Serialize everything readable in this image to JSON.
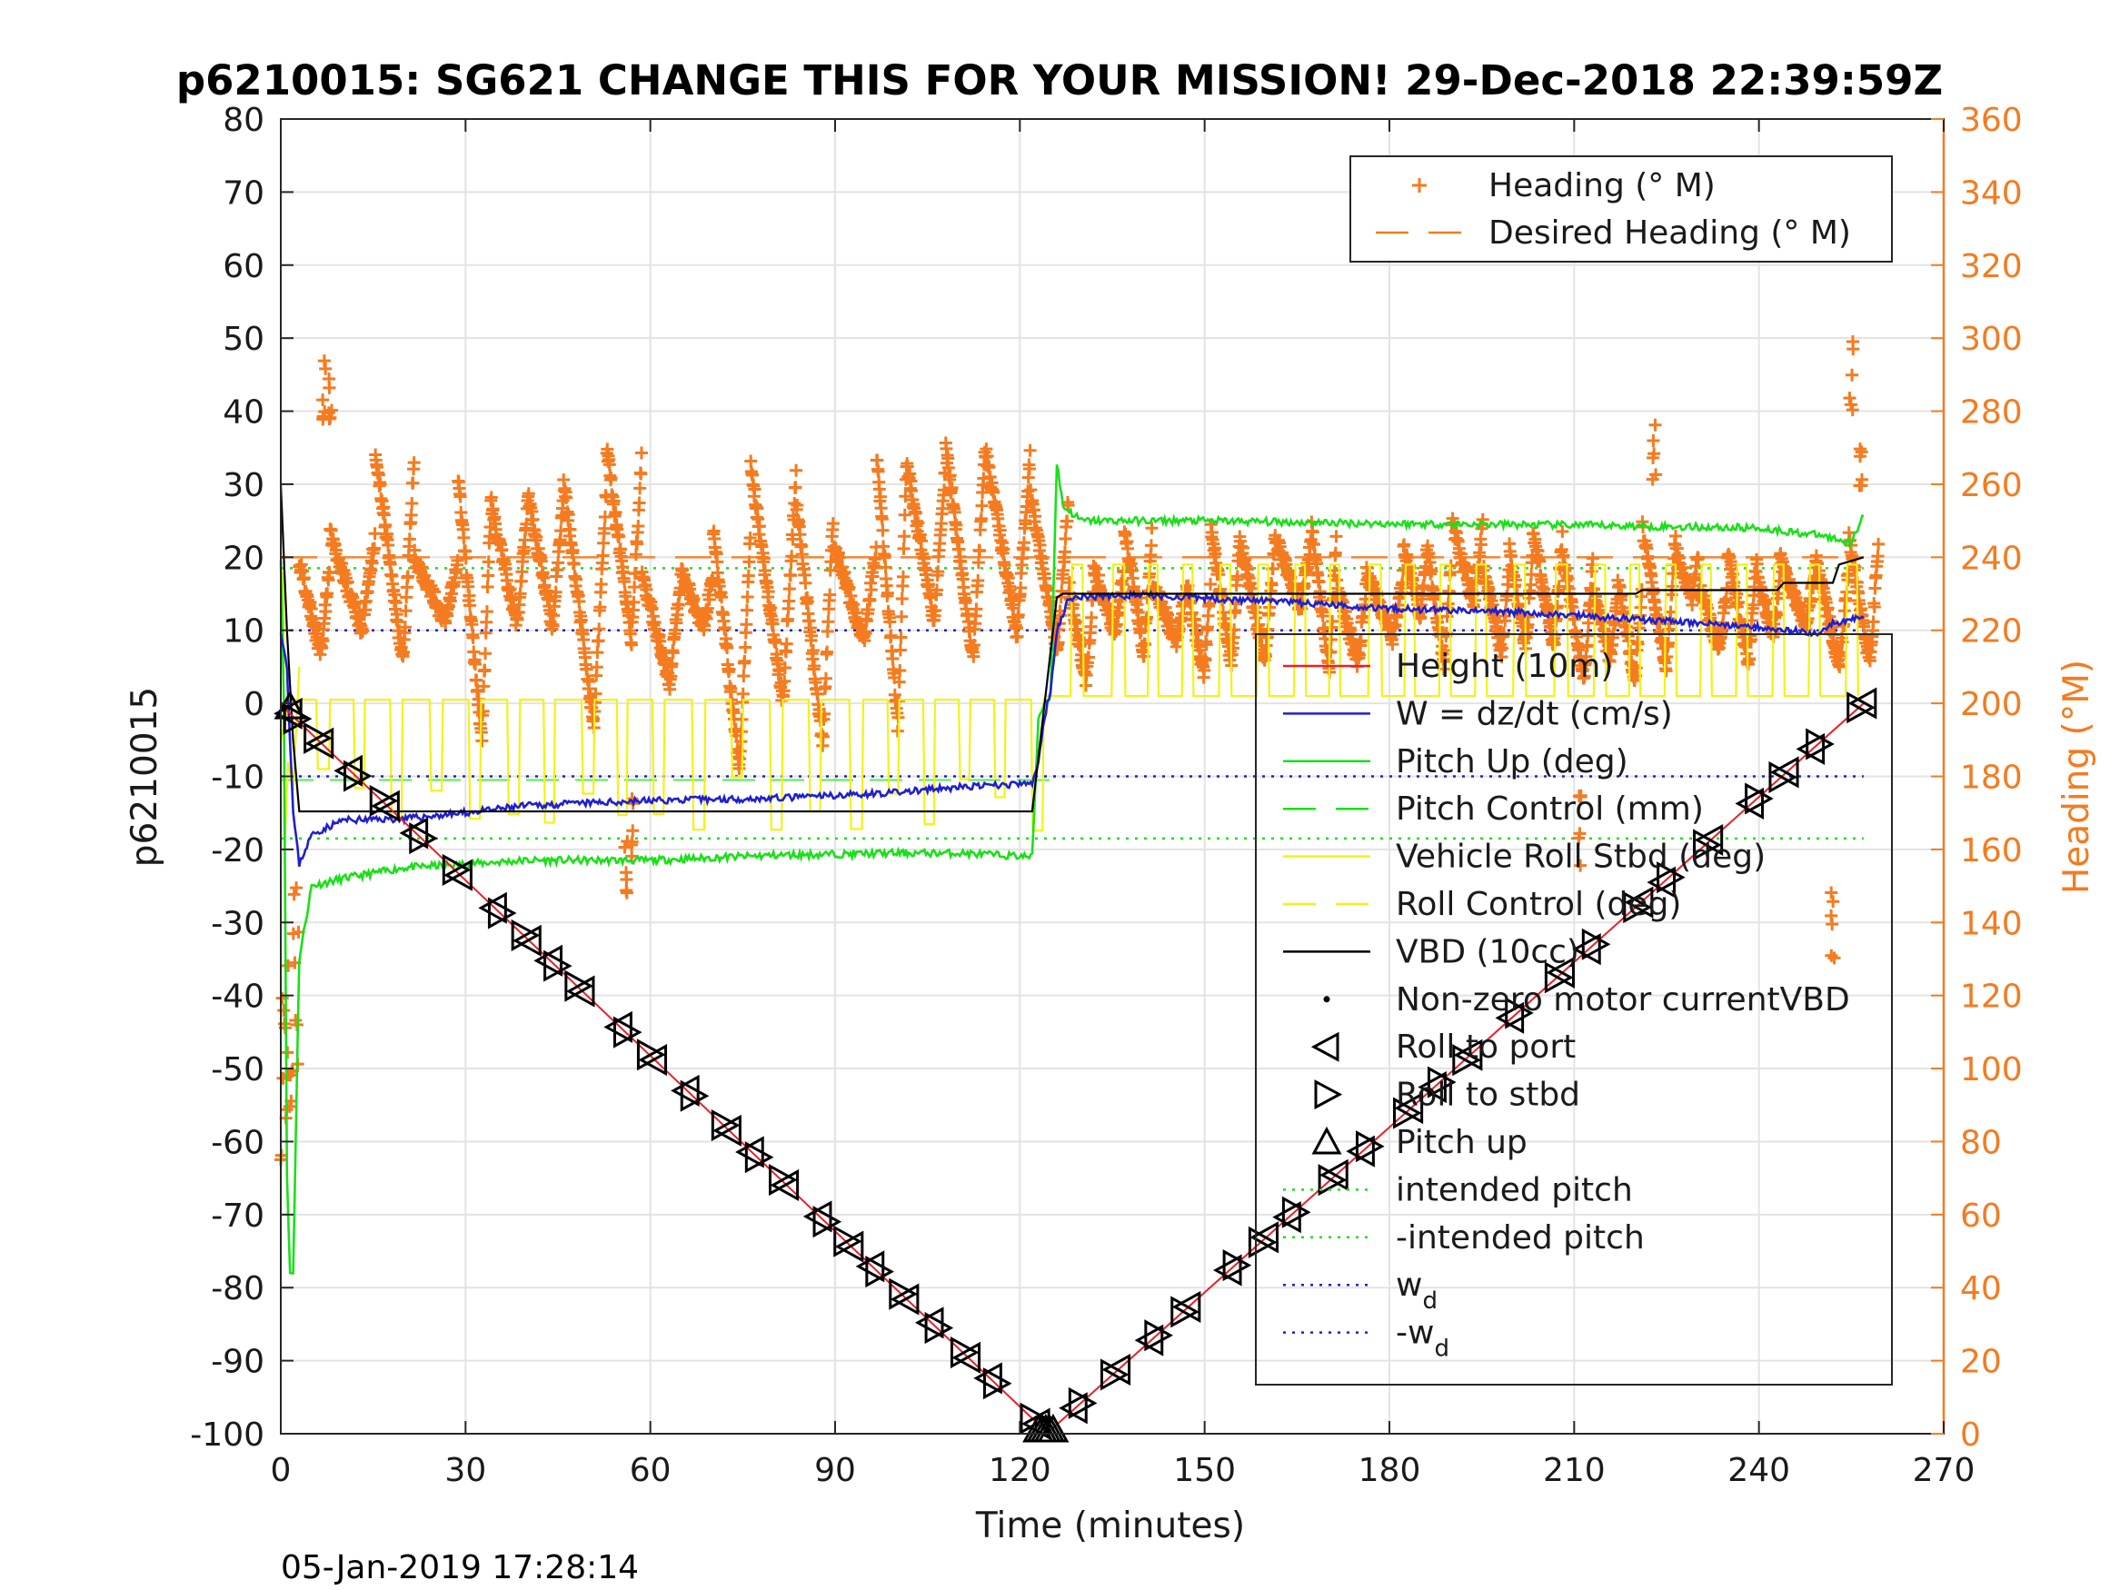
{
  "title": "p6210015: SG621 CHANGE THIS FOR YOUR MISSION! 29-Dec-2018 22:39:59Z",
  "timestamp": "05-Jan-2019 17:28:14",
  "colors": {
    "heading": "#f47b20",
    "height": "#e8202a",
    "w": "#1f1fd0",
    "pitch": "#19e019",
    "roll": "#f2f214",
    "vbd": "#000000",
    "grid": "#e3e3e3"
  },
  "chart_data": {
    "type": "line",
    "xlabel": "Time (minutes)",
    "ylabel": "p6210015",
    "ylabel_right": "Heading (°M)",
    "xlim": [
      0,
      270
    ],
    "ylim": [
      -100,
      80
    ],
    "ylim_right": [
      0,
      360
    ],
    "grid": true,
    "x_ticks": [
      "0",
      "30",
      "60",
      "90",
      "120",
      "150",
      "180",
      "210",
      "240",
      "270"
    ],
    "y_ticks": [
      "80",
      "70",
      "60",
      "50",
      "40",
      "30",
      "20",
      "10",
      "0",
      "-10",
      "-20",
      "-30",
      "-40",
      "-50",
      "-60",
      "-70",
      "-80",
      "-90",
      "-100"
    ],
    "y_ticks_right": [
      "360",
      "340",
      "320",
      "300",
      "280",
      "260",
      "240",
      "220",
      "200",
      "180",
      "160",
      "140",
      "120",
      "100",
      "80",
      "60",
      "40",
      "20",
      "0"
    ],
    "legend_heading": {
      "placement": "top-right",
      "entries": [
        {
          "label": "Heading (° M)",
          "style": "plus",
          "color": "#f47b20"
        },
        {
          "label": "Desired Heading (° M)",
          "style": "dash",
          "color": "#f47b20"
        }
      ]
    },
    "legend_main": {
      "placement": "right",
      "entries": [
        {
          "label": "Height (10m)",
          "style": "line",
          "color": "#e8202a"
        },
        {
          "label": "W = dz/dt (cm/s)",
          "style": "line",
          "color": "#1f1fd0"
        },
        {
          "label": "Pitch Up (deg)",
          "style": "line",
          "color": "#19e019"
        },
        {
          "label": "Pitch Control (mm)",
          "style": "dash",
          "color": "#19e019"
        },
        {
          "label": "Vehicle Roll Stbd (deg)",
          "style": "line",
          "color": "#f2f214"
        },
        {
          "label": "Roll Control (deg)",
          "style": "dash",
          "color": "#f2f214"
        },
        {
          "label": "VBD (10cc)",
          "style": "line",
          "color": "#000000"
        },
        {
          "label": "Non-zero motor currentVBD",
          "style": "dot",
          "color": "#000000"
        },
        {
          "label": "Roll to port",
          "style": "tri-left",
          "color": "#000000"
        },
        {
          "label": "Roll to stbd",
          "style": "tri-right",
          "color": "#000000"
        },
        {
          "label": "Pitch up",
          "style": "tri-up",
          "color": "#000000"
        },
        {
          "label": "intended pitch",
          "style": "dotted",
          "color": "#19e019"
        },
        {
          "label": "-intended pitch",
          "style": "dotted",
          "color": "#19e019"
        },
        {
          "label": "w",
          "sub": "d",
          "style": "dotted",
          "color": "#1f1fd0"
        },
        {
          "label": "-w",
          "sub": "d",
          "style": "dotted",
          "color": "#1f1fd0"
        }
      ]
    },
    "series": [
      {
        "name": "Height (10m)",
        "x": [
          0,
          1,
          124,
          125,
          257
        ],
        "y": [
          0,
          -1,
          -99.5,
          -99.5,
          0
        ]
      },
      {
        "name": "W = dz/dt (cm/s)",
        "x": [
          0,
          1,
          2,
          3,
          5,
          10,
          20,
          30,
          40,
          60,
          80,
          100,
          110,
          122,
          123,
          124,
          125,
          126,
          128,
          140,
          160,
          180,
          200,
          220,
          240,
          250,
          252,
          257
        ],
        "y": [
          10,
          5,
          -15,
          -22,
          -18,
          -16,
          -15.8,
          -15,
          -14,
          -13.3,
          -13,
          -12.2,
          -11.5,
          -11,
          -8,
          -2,
          2,
          10,
          14.5,
          14.8,
          14,
          13,
          12.5,
          11.5,
          10.5,
          9.5,
          11,
          12
        ]
      },
      {
        "name": "Pitch Up (deg)",
        "x": [
          0,
          0.5,
          1,
          1.5,
          2,
          3,
          5,
          10,
          20,
          30,
          40,
          60,
          80,
          100,
          110,
          122,
          123,
          124,
          125,
          126,
          127,
          130,
          150,
          180,
          210,
          240,
          250,
          255,
          257
        ],
        "y": [
          20,
          0,
          -65,
          -78,
          -78,
          -35,
          -25,
          -24,
          -22.5,
          -22,
          -21.5,
          -21.5,
          -20.8,
          -20.5,
          -20.5,
          -21,
          -2,
          0,
          1,
          33,
          27,
          25,
          25,
          24.6,
          24.4,
          24,
          23,
          22,
          26
        ]
      },
      {
        "name": "VBD (10cc)",
        "x": [
          0,
          1,
          2,
          3,
          122,
          126,
          127,
          220,
          221,
          243,
          244,
          252,
          253,
          257
        ],
        "y": [
          30,
          10,
          -5,
          -14.8,
          -14.8,
          14.5,
          15,
          15,
          15.5,
          15.5,
          16.5,
          16.5,
          19,
          20
        ]
      },
      {
        "name": "intended pitch",
        "x": [
          0,
          257
        ],
        "y": [
          18.5,
          18.5
        ]
      },
      {
        "name": "-intended pitch",
        "x": [
          0,
          257
        ],
        "y": [
          -18.5,
          -18.5
        ]
      },
      {
        "name": "w_d",
        "x": [
          0,
          257
        ],
        "y": [
          10,
          10
        ]
      },
      {
        "name": "-w_d",
        "x": [
          0,
          257
        ],
        "y": [
          -10,
          -10
        ]
      },
      {
        "name": "Desired Heading (° M)",
        "axis": "right",
        "x": [
          0,
          257
        ],
        "y": [
          240,
          240
        ]
      }
    ]
  }
}
